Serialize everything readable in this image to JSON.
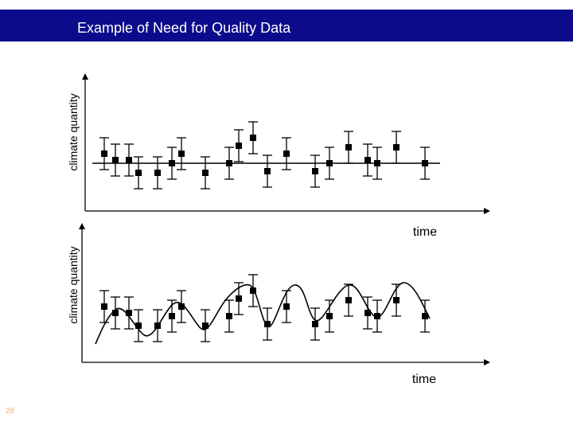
{
  "slide": {
    "title": "Example of Need for Quality Data",
    "page_number": "28",
    "title_bar_color": "#0c0b8c"
  },
  "chart_data": [
    {
      "type": "scatter",
      "title": "",
      "xlabel": "time",
      "ylabel": "climate quantity",
      "error_bars": true,
      "reference_line": "horizontal line at baseline level",
      "points": [
        {
          "x": 1,
          "y": 0.6
        },
        {
          "x": 2,
          "y": 0.2
        },
        {
          "x": 3,
          "y": 0.2
        },
        {
          "x": 4,
          "y": -0.6
        },
        {
          "x": 5,
          "y": -0.6
        },
        {
          "x": 6,
          "y": 0.0
        },
        {
          "x": 7,
          "y": 0.6
        },
        {
          "x": 8,
          "y": -0.6
        },
        {
          "x": 9,
          "y": 0.0
        },
        {
          "x": 10,
          "y": 1.1
        },
        {
          "x": 11,
          "y": 1.6
        },
        {
          "x": 12,
          "y": -0.5
        },
        {
          "x": 13,
          "y": 0.6
        },
        {
          "x": 14,
          "y": -0.5
        },
        {
          "x": 15,
          "y": 0.0
        },
        {
          "x": 16,
          "y": 1.0
        },
        {
          "x": 17,
          "y": 0.2
        },
        {
          "x": 18,
          "y": 0.0
        },
        {
          "x": 19,
          "y": 1.0
        },
        {
          "x": 20,
          "y": 0.0
        }
      ],
      "error": 1.0
    },
    {
      "type": "scatter",
      "title": "",
      "xlabel": "time",
      "ylabel": "climate quantity",
      "error_bars": true,
      "fit_curve": "oscillating wave through points",
      "points": [
        {
          "x": 1,
          "y": 0.6
        },
        {
          "x": 2,
          "y": 0.2
        },
        {
          "x": 3,
          "y": 0.2
        },
        {
          "x": 4,
          "y": -0.6
        },
        {
          "x": 5,
          "y": -0.6
        },
        {
          "x": 6,
          "y": 0.0
        },
        {
          "x": 7,
          "y": 0.6
        },
        {
          "x": 8,
          "y": -0.6
        },
        {
          "x": 9,
          "y": 0.0
        },
        {
          "x": 10,
          "y": 1.1
        },
        {
          "x": 11,
          "y": 1.6
        },
        {
          "x": 12,
          "y": -0.5
        },
        {
          "x": 13,
          "y": 0.6
        },
        {
          "x": 14,
          "y": -0.5
        },
        {
          "x": 15,
          "y": 0.0
        },
        {
          "x": 16,
          "y": 1.0
        },
        {
          "x": 17,
          "y": 0.2
        },
        {
          "x": 18,
          "y": 0.0
        },
        {
          "x": 19,
          "y": 1.0
        },
        {
          "x": 20,
          "y": 0.0
        }
      ],
      "error": 1.0
    }
  ]
}
